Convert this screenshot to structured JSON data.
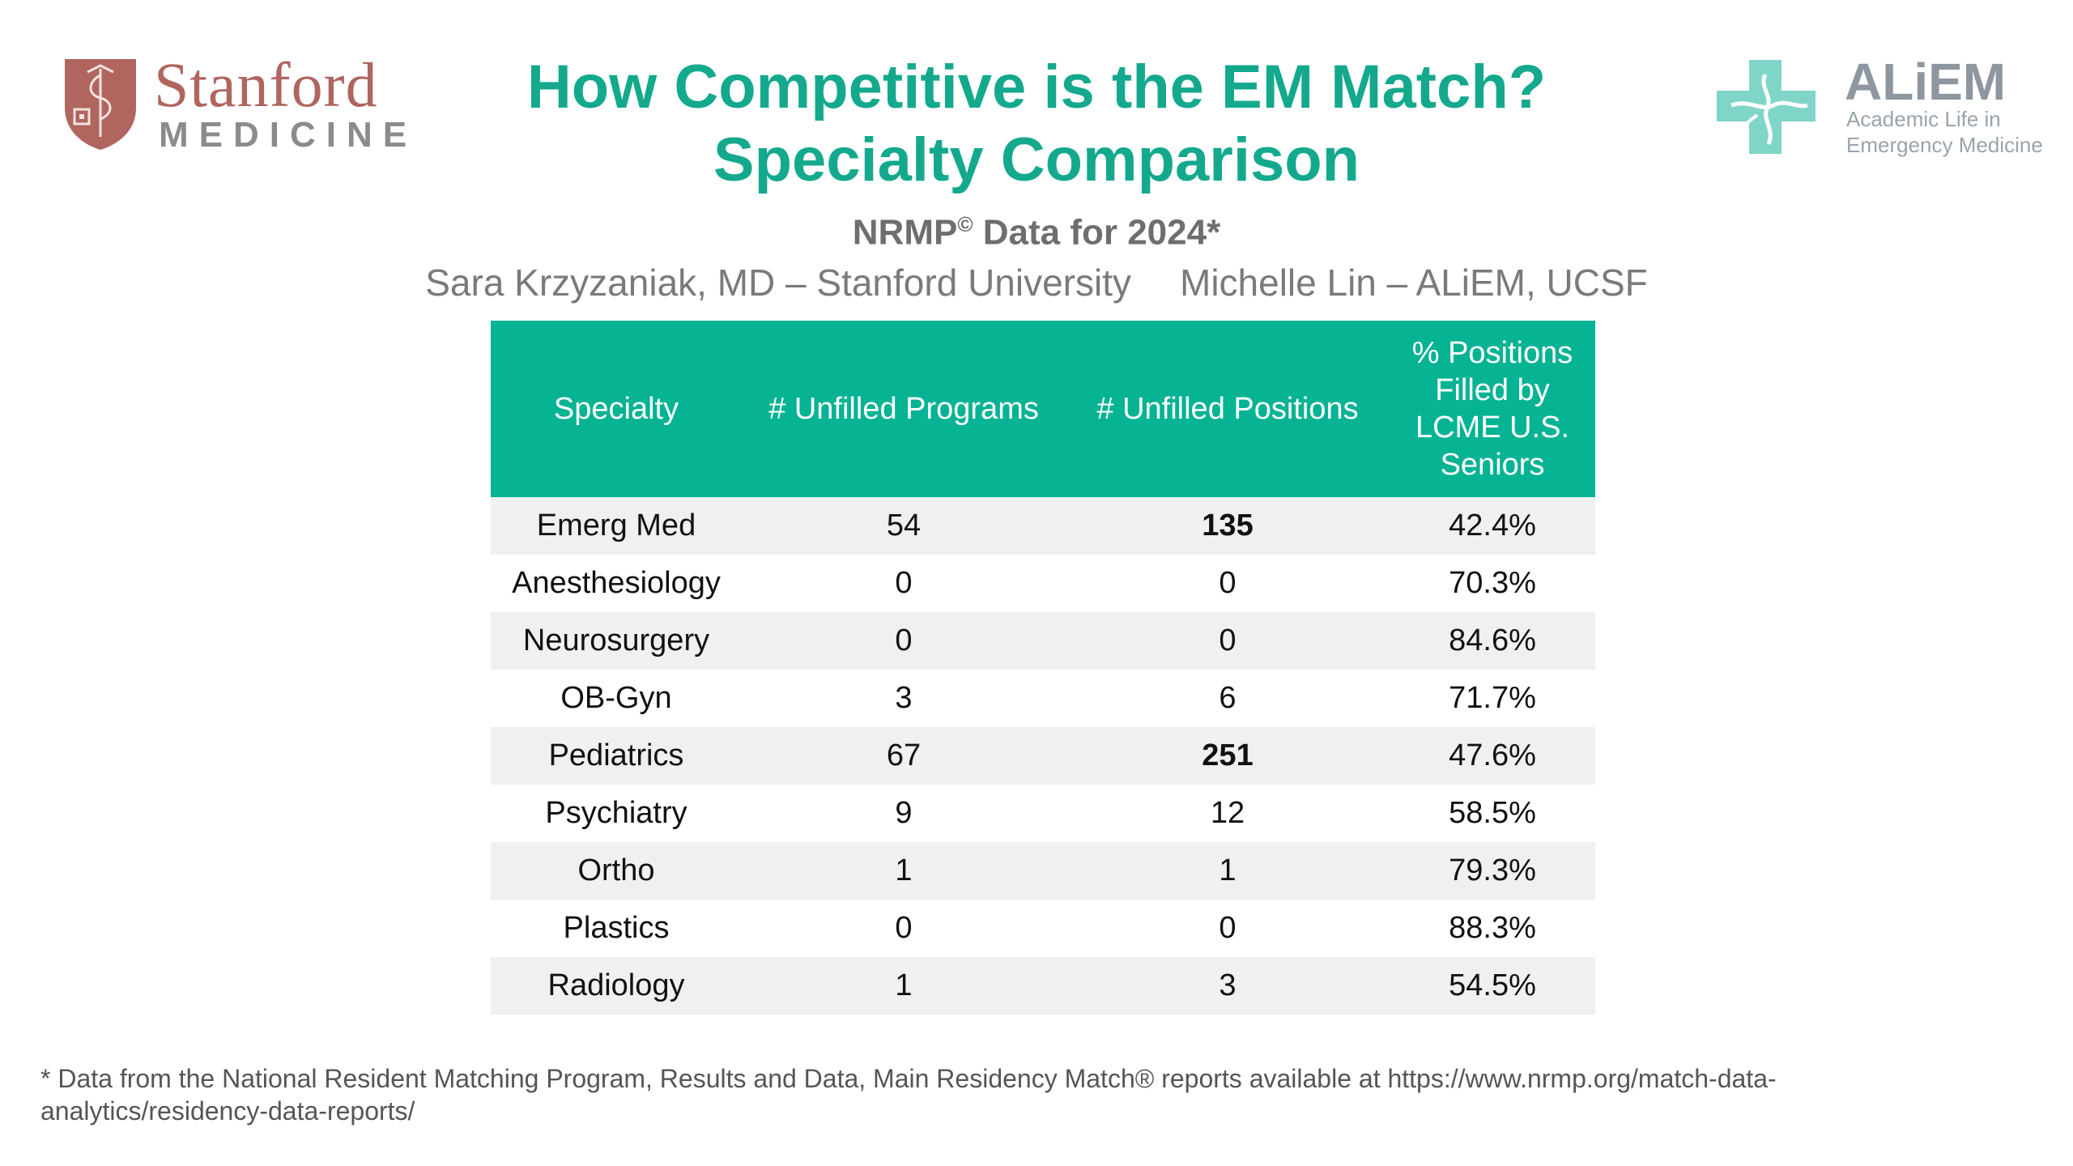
{
  "logos": {
    "stanford": {
      "name": "Stanford",
      "sub": "MEDICINE"
    },
    "aliem": {
      "name": "ALiEM",
      "tagline_1": "Academic Life in",
      "tagline_2": "Emergency Medicine"
    }
  },
  "title_line1": "How Competitive is the EM Match?",
  "title_line2": "Specialty Comparison",
  "subtitle": {
    "prefix": "NRMP",
    "mark": "©",
    "suffix": " Data for 2024*"
  },
  "authors": {
    "left": "Sara Krzyzaniak, MD – Stanford University",
    "right": "Michelle Lin – ALiEM, UCSF"
  },
  "table": {
    "headers": [
      "Specialty",
      "# Unfilled Programs",
      "# Unfilled Positions",
      "% Positions Filled by LCME U.S. Seniors"
    ],
    "rows": [
      {
        "specialty": "Emerg Med",
        "programs": "54",
        "positions": "135",
        "pct": "42.4%",
        "highlight": true
      },
      {
        "specialty": "Anesthesiology",
        "programs": "0",
        "positions": "0",
        "pct": "70.3%",
        "highlight": false
      },
      {
        "specialty": "Neurosurgery",
        "programs": "0",
        "positions": "0",
        "pct": "84.6%",
        "highlight": false
      },
      {
        "specialty": "OB-Gyn",
        "programs": "3",
        "positions": "6",
        "pct": "71.7%",
        "highlight": false
      },
      {
        "specialty": "Pediatrics",
        "programs": "67",
        "positions": "251",
        "pct": "47.6%",
        "highlight": true
      },
      {
        "specialty": "Psychiatry",
        "programs": "9",
        "positions": "12",
        "pct": "58.5%",
        "highlight": false
      },
      {
        "specialty": "Ortho",
        "programs": "1",
        "positions": "1",
        "pct": "79.3%",
        "highlight": false
      },
      {
        "specialty": "Plastics",
        "programs": "0",
        "positions": "0",
        "pct": "88.3%",
        "highlight": false
      },
      {
        "specialty": "Radiology",
        "programs": "1",
        "positions": "3",
        "pct": "54.5%",
        "highlight": false
      }
    ]
  },
  "footnote": "* Data from the National Resident Matching Program, Results and Data, Main Residency Match® reports available at https://www.nrmp.org/match-data-analytics/residency-data-reports/",
  "colors": {
    "accent": "#14a98d",
    "header_bg": "#06b393",
    "stanford": "#b0655f",
    "aliem_cross": "#7fd5c8",
    "row_alt": "#f0f0f0"
  }
}
